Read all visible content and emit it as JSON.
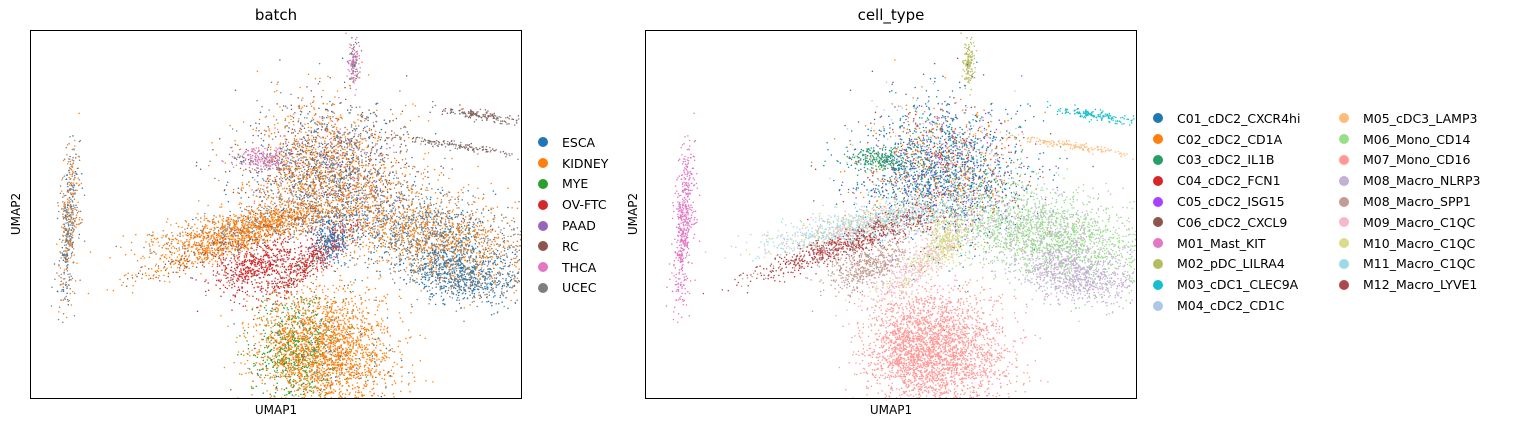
{
  "chart_data": [
    {
      "type": "scatter",
      "title": "batch",
      "xlabel": "UMAP1",
      "ylabel": "UMAP2",
      "xticks": [],
      "yticks": [],
      "legend_position": "right",
      "series": [
        {
          "name": "ESCA",
          "color": "#1f77b4"
        },
        {
          "name": "KIDNEY",
          "color": "#ff7f0e"
        },
        {
          "name": "MYE",
          "color": "#2ca02c"
        },
        {
          "name": "OV-FTC",
          "color": "#d62728"
        },
        {
          "name": "PAAD",
          "color": "#9467bd"
        },
        {
          "name": "RC",
          "color": "#8c564b"
        },
        {
          "name": "THCA",
          "color": "#e377c2"
        },
        {
          "name": "UCEC",
          "color": "#7f7f7f"
        }
      ]
    },
    {
      "type": "scatter",
      "title": "cell_type",
      "xlabel": "UMAP1",
      "ylabel": "UMAP2",
      "xticks": [],
      "yticks": [],
      "legend_position": "right",
      "series": [
        {
          "name": "C01_cDC2_CXCR4hi",
          "color": "#1f77b4"
        },
        {
          "name": "C02_cDC2_CD1A",
          "color": "#ff7f0e"
        },
        {
          "name": "C03_cDC2_IL1B",
          "color": "#279e68"
        },
        {
          "name": "C04_cDC2_FCN1",
          "color": "#d62728"
        },
        {
          "name": "C05_cDC2_ISG15",
          "color": "#aa40fc"
        },
        {
          "name": "C06_cDC2_CXCL9",
          "color": "#8c564b"
        },
        {
          "name": "M01_Mast_KIT",
          "color": "#e377c2"
        },
        {
          "name": "M02_pDC_LILRA4",
          "color": "#b5bd61"
        },
        {
          "name": "M03_cDC1_CLEC9A",
          "color": "#17becf"
        },
        {
          "name": "M04_cDC2_CD1C",
          "color": "#aec7e8"
        },
        {
          "name": "M05_cDC3_LAMP3",
          "color": "#ffbb78"
        },
        {
          "name": "M06_Mono_CD14",
          "color": "#98df8a"
        },
        {
          "name": "M07_Mono_CD16",
          "color": "#ff9896"
        },
        {
          "name": "M08_Macro_NLRP3",
          "color": "#c5b0d5"
        },
        {
          "name": "M08_Macro_SPP1",
          "color": "#c49c94"
        },
        {
          "name": "M09_Macro_C1QC",
          "color": "#f7b6d2"
        },
        {
          "name": "M10_Macro_C1QC",
          "color": "#dbdb8d"
        },
        {
          "name": "M11_Macro_C1QC",
          "color": "#9edae5"
        },
        {
          "name": "M12_Macro_LYVE1",
          "color": "#ad494a"
        }
      ]
    }
  ]
}
